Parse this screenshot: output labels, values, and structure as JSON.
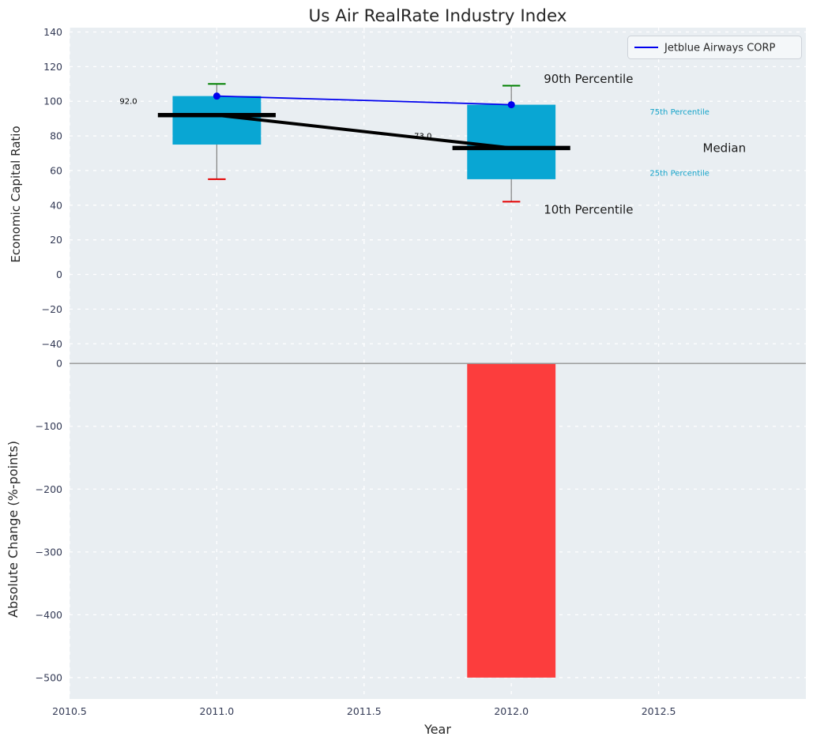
{
  "title": "Us Air RealRate Industry Index",
  "legend": {
    "label": "Jetblue Airways CORP",
    "color": "#0000ee",
    "position": "upper right"
  },
  "colors": {
    "background": "#e9eef2",
    "grid": "#ffffff",
    "tick": "#333a55",
    "text": "#262626",
    "box": "#09a6d3",
    "percentile_label": "#14a3c9",
    "bar": "#fc3d3d",
    "line": "#0000ee",
    "median": "#000000",
    "whisker": "#808080",
    "cap_top": "#008000",
    "cap_bottom": "#e50000",
    "zero_line": "#949494"
  },
  "chart_data": [
    {
      "type": "box",
      "name": "economic-capital-ratio-panel",
      "ylabel": "Economic Capital Ratio",
      "xlabel": "Year",
      "xlim": [
        2010.5,
        2013.0
      ],
      "ylim": [
        -49,
        142.5
      ],
      "xticks": [
        2010.5,
        2011.0,
        2011.5,
        2012.0,
        2012.5
      ],
      "yticks": [
        140,
        120,
        100,
        80,
        60,
        40,
        20,
        0,
        -20,
        -40
      ],
      "grid": true,
      "box_width": 0.3,
      "median_width": 0.4,
      "cap_width": 0.06,
      "categories": [
        2011,
        2012
      ],
      "series": [
        {
          "name": "10th Percentile",
          "values": [
            55,
            42
          ]
        },
        {
          "name": "25th Percentile",
          "values": [
            75,
            55
          ]
        },
        {
          "name": "Median",
          "values": [
            92,
            73
          ]
        },
        {
          "name": "75th Percentile",
          "values": [
            103,
            98
          ]
        },
        {
          "name": "90th Percentile",
          "values": [
            110,
            109
          ]
        },
        {
          "name": "Jetblue Airways CORP",
          "values": [
            103,
            98
          ]
        }
      ],
      "annotations": [
        {
          "text": "92.0",
          "x": 2010.67,
          "y": 100,
          "color": "#000000",
          "size": 10,
          "anchor": "start"
        },
        {
          "text": "73.0",
          "x": 2011.67,
          "y": 80,
          "color": "#000000",
          "size": 10,
          "anchor": "start"
        },
        {
          "text": "90th Percentile",
          "x": 2012.11,
          "y": 113,
          "color": "#1a1a1a",
          "size": 15,
          "anchor": "start"
        },
        {
          "text": "75th Percentile",
          "x": 2012.47,
          "y": 94,
          "color": "#14a3c9",
          "size": 10,
          "anchor": "start"
        },
        {
          "text": "Median",
          "x": 2012.65,
          "y": 73,
          "color": "#1a1a1a",
          "size": 15,
          "anchor": "start"
        },
        {
          "text": "25th Percentile",
          "x": 2012.47,
          "y": 58.5,
          "color": "#14a3c9",
          "size": 10,
          "anchor": "start"
        },
        {
          "text": "10th Percentile",
          "x": 2012.11,
          "y": 37.5,
          "color": "#1a1a1a",
          "size": 15,
          "anchor": "start"
        }
      ]
    },
    {
      "type": "bar",
      "name": "absolute-change-panel",
      "ylabel": "Absolute Change (%-points)",
      "xlabel": "Year",
      "xlim": [
        2010.5,
        2013.0
      ],
      "ylim": [
        -534,
        6.5
      ],
      "xticks": [
        2010.5,
        2011.0,
        2011.5,
        2012.0,
        2012.5
      ],
      "yticks": [
        0,
        -100,
        -200,
        -300,
        -400,
        -500
      ],
      "grid": true,
      "bar_width": 0.3,
      "x": [
        2012
      ],
      "values": [
        -500
      ]
    }
  ]
}
